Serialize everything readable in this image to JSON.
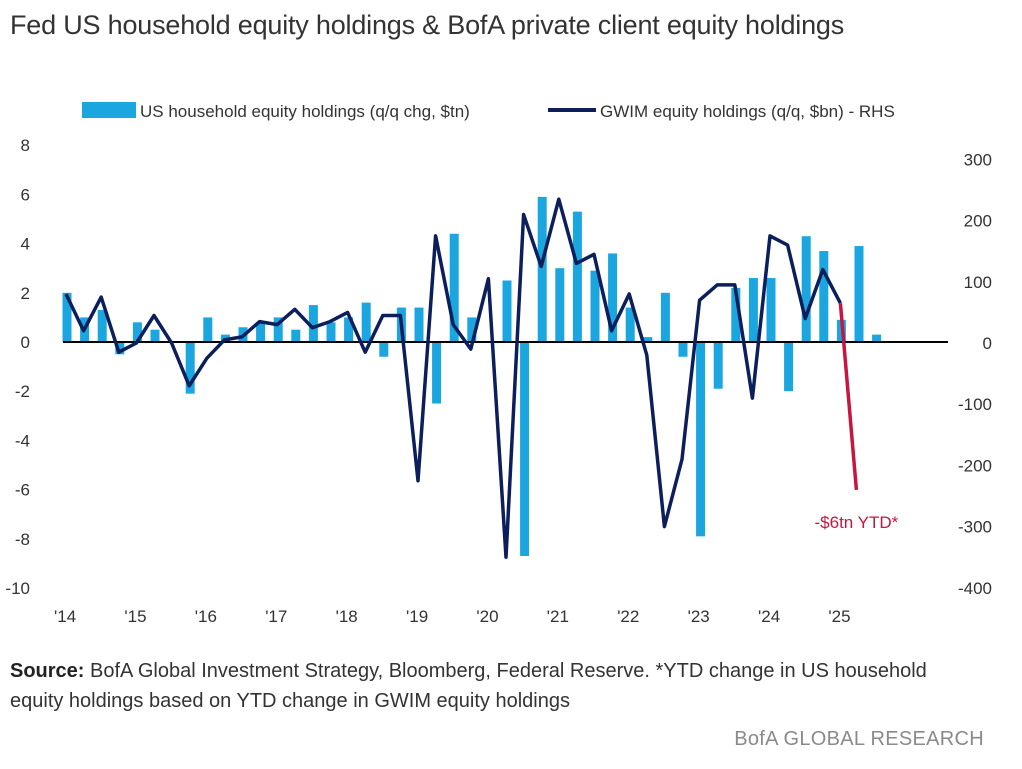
{
  "title": "Fed US household equity holdings & BofA private client equity holdings",
  "source_label": "Source:",
  "source_text": "BofA Global Investment Strategy, Bloomberg, Federal Reserve. *YTD change in US household equity holdings based on YTD change in GWIM equity holdings",
  "brand": "BofA GLOBAL RESEARCH",
  "colors": {
    "bars": "#1ba6e0",
    "line": "#0c1f5c",
    "ytd": "#c8153f",
    "zero": "#000000"
  },
  "chart_data": {
    "type": "bar+line",
    "legend": {
      "bar_label": "US household equity holdings (q/q chg, $tn)",
      "line_label": "GWIM equity holdings (q/q, $bn) - RHS",
      "placement": "top"
    },
    "x_tick_labels": [
      "'14",
      "'15",
      "'16",
      "'17",
      "'18",
      "'19",
      "'20",
      "'21",
      "'22",
      "'23",
      "'24",
      "'25"
    ],
    "y_left": {
      "lim": [
        -10,
        8
      ],
      "ticks": [
        8,
        6,
        4,
        2,
        0,
        -2,
        -4,
        -6,
        -8,
        -10
      ]
    },
    "y_right": {
      "lim": [
        -400,
        300
      ],
      "ticks": [
        300,
        200,
        100,
        0,
        -100,
        -200,
        -300,
        -400
      ]
    },
    "bars": {
      "name": "US household equity holdings (q/q chg, $tn)",
      "axis": "left",
      "start_year": 2014,
      "start_quarter": 1,
      "values": [
        2.0,
        1.0,
        1.3,
        -0.5,
        0.8,
        0.5,
        0.0,
        -2.1,
        1.0,
        0.3,
        0.6,
        0.8,
        1.0,
        0.5,
        1.5,
        0.8,
        1.0,
        1.6,
        -0.6,
        1.4,
        1.4,
        -2.5,
        4.4,
        1.0,
        0.0,
        2.5,
        -8.7,
        5.9,
        3.0,
        5.3,
        2.9,
        3.6,
        1.4,
        0.2,
        2.0,
        -0.6,
        -7.9,
        -1.9,
        2.2,
        2.6,
        2.6,
        -2.0,
        4.3,
        3.7,
        0.9,
        3.9,
        0.3
      ]
    },
    "line": {
      "name": "GWIM equity holdings (q/q, $bn) - RHS",
      "axis": "right",
      "values": [
        80,
        20,
        75,
        -15,
        0,
        45,
        0,
        -70,
        -25,
        5,
        10,
        35,
        30,
        55,
        25,
        35,
        50,
        -15,
        45,
        45,
        -225,
        175,
        30,
        -10,
        105,
        -350,
        210,
        125,
        235,
        130,
        145,
        20,
        80,
        -20,
        -300,
        -190,
        70,
        95,
        95,
        -90,
        175,
        160,
        40,
        120,
        65
      ]
    },
    "ytd_line": {
      "axis": "right",
      "values": [
        65,
        -240
      ],
      "annotation": "-$6tn YTD*"
    }
  }
}
